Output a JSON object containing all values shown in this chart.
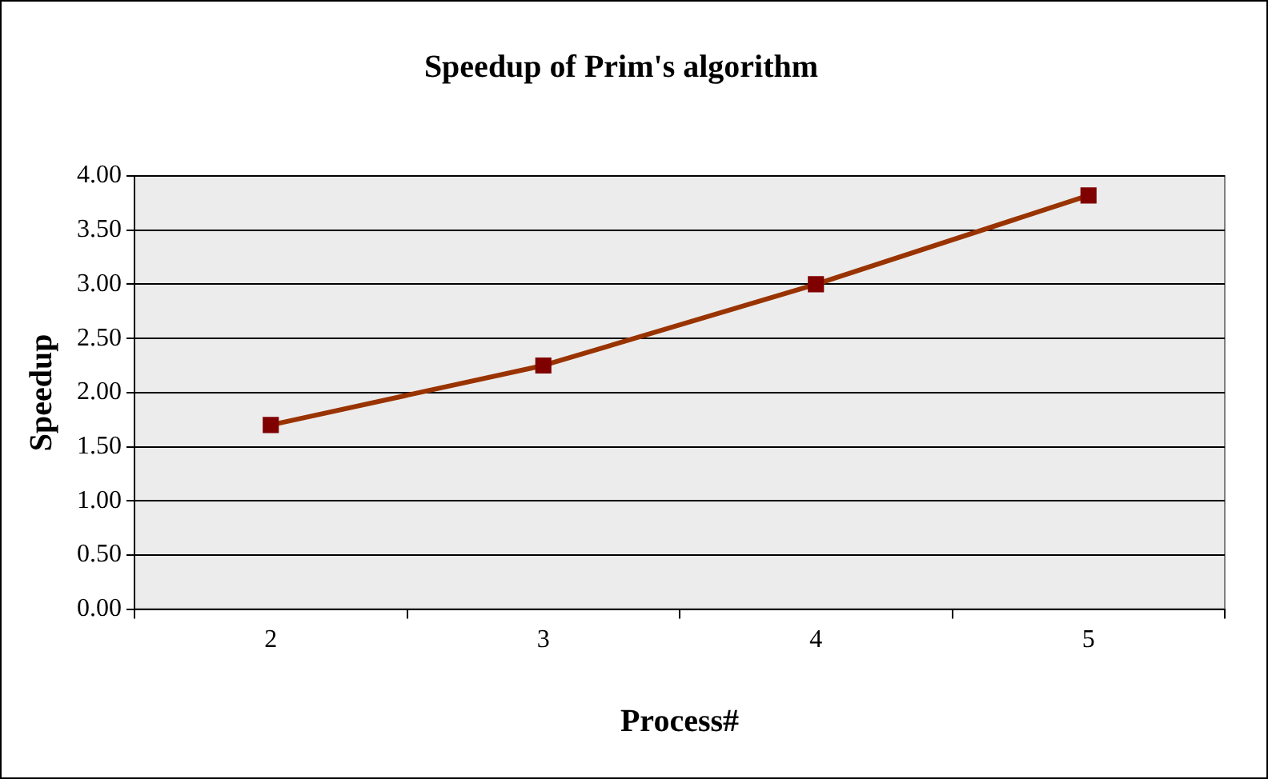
{
  "chart_data": {
    "type": "line",
    "title": "Speedup of Prim's algorithm",
    "xlabel": "Process#",
    "ylabel": "Speedup",
    "categories": [
      "2",
      "3",
      "4",
      "5"
    ],
    "series": [
      {
        "color": "#993300",
        "colors": [
          "#800000",
          "#800000",
          "#800000",
          "#800000"
        ],
        "values": [
          1.7,
          2.25,
          3.0,
          3.82
        ]
      }
    ],
    "ylim": [
      0,
      4
    ],
    "yticks": [
      {
        "value": 0,
        "label": "0.00"
      },
      {
        "value": 0.5,
        "label": "0.50"
      },
      {
        "value": 1,
        "label": "1.00"
      },
      {
        "value": 1.5,
        "label": "1.50"
      },
      {
        "value": 2,
        "label": "2.00"
      },
      {
        "value": 2.5,
        "label": "2.50"
      },
      {
        "value": 3,
        "label": "3.00"
      },
      {
        "value": 3.5,
        "label": "3.50"
      },
      {
        "value": 4,
        "label": "4.00"
      }
    ],
    "grid": "y",
    "legend": false,
    "marker": "square",
    "line_style": "solid"
  }
}
